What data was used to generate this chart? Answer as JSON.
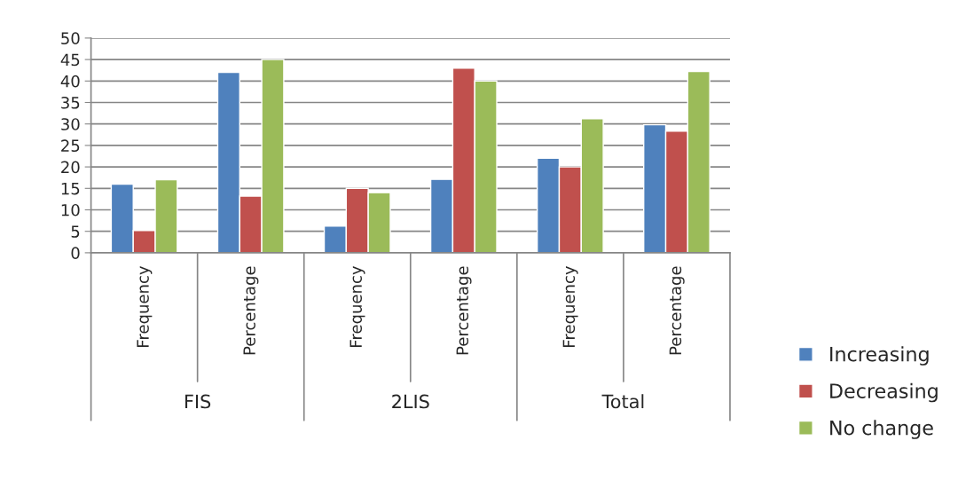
{
  "chart_data": {
    "type": "bar",
    "categories": [
      "Frequency",
      "Percentage",
      "Frequency",
      "Percentage",
      "Frequency",
      "Percentage"
    ],
    "series": [
      {
        "name": "Increasing",
        "color": "#4f81bd",
        "values": [
          16,
          42,
          6.2,
          17.1,
          22,
          29.8
        ]
      },
      {
        "name": "Decreasing",
        "color": "#c0504d",
        "values": [
          5.2,
          13.2,
          15,
          43,
          20,
          28.3
        ]
      },
      {
        "name": "No change",
        "color": "#9bbb59",
        "values": [
          17,
          45,
          14,
          40,
          31.2,
          42.2
        ]
      }
    ],
    "annotations": [
      "FIS",
      "2LIS",
      "Total"
    ],
    "ylim": [
      0,
      50
    ],
    "yticks": [
      0,
      5,
      10,
      15,
      20,
      25,
      30,
      35,
      40,
      45,
      50
    ],
    "grid": "y",
    "legend": "right"
  }
}
